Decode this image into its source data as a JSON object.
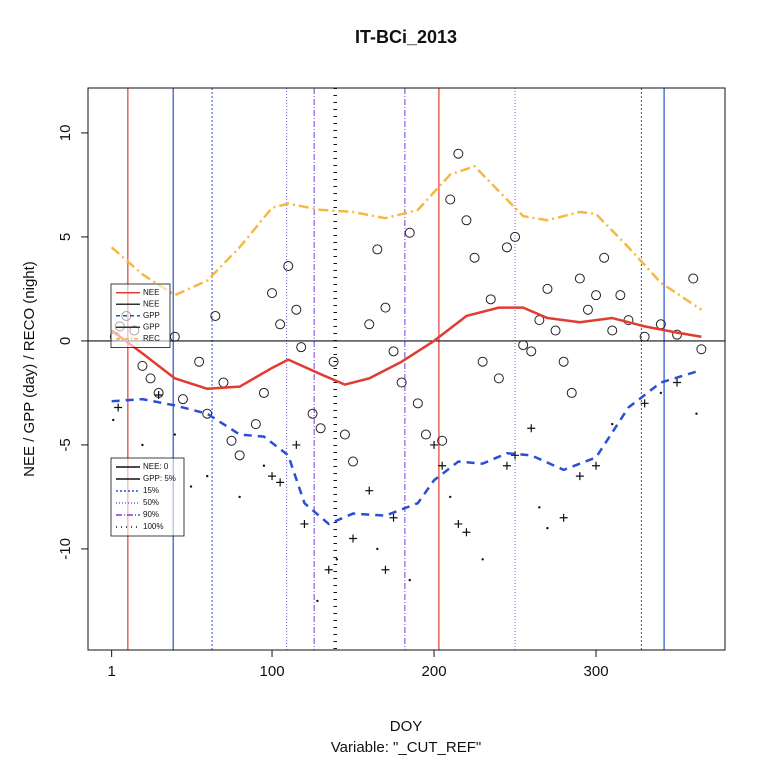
{
  "chart_data": {
    "type": "line",
    "title": "IT-BCi_2013",
    "x_label": "DOY",
    "y_label": "NEE / GPP (day) / RECO (night)",
    "subtitle": "Variable: \"_CUT_REF\"",
    "xlim": [
      -13.6,
      379.6
    ],
    "ylim": [
      -14.86,
      12.16
    ],
    "xticks": [
      1,
      100,
      200,
      300
    ],
    "yticks": [
      -10,
      -5,
      0,
      5,
      10
    ],
    "hline": 0,
    "series": [
      {
        "name": "REC",
        "color": "#f5b942",
        "dash": "10 4 2 4",
        "width": 2.5,
        "x": [
          1,
          20,
          40,
          60,
          80,
          100,
          110,
          130,
          150,
          170,
          190,
          210,
          225,
          240,
          255,
          270,
          290,
          300,
          320,
          340,
          365
        ],
        "values": [
          4.5,
          3.2,
          2.2,
          2.9,
          4.5,
          6.4,
          6.6,
          6.3,
          6.2,
          5.9,
          6.3,
          8.0,
          8.4,
          7.2,
          6.0,
          5.8,
          6.2,
          6.1,
          4.5,
          2.8,
          1.5
        ]
      },
      {
        "name": "NEE",
        "color": "#e03c31",
        "dash": "",
        "width": 2.5,
        "x": [
          1,
          20,
          40,
          60,
          80,
          100,
          110,
          130,
          145,
          160,
          180,
          200,
          220,
          240,
          255,
          270,
          290,
          310,
          330,
          350,
          365
        ],
        "values": [
          0.5,
          -0.6,
          -1.8,
          -2.3,
          -2.2,
          -1.3,
          -0.9,
          -1.6,
          -2.1,
          -1.8,
          -1.0,
          0,
          1.2,
          1.6,
          1.6,
          1.1,
          0.9,
          1.1,
          0.7,
          0.4,
          0.2
        ]
      },
      {
        "name": "GPP",
        "color": "#2a4fd6",
        "dash": "8 6",
        "width": 2.5,
        "x": [
          1,
          20,
          40,
          60,
          80,
          95,
          110,
          120,
          135,
          150,
          170,
          190,
          200,
          215,
          230,
          245,
          260,
          280,
          300,
          320,
          340,
          365
        ],
        "values": [
          -2.9,
          -2.8,
          -3.1,
          -3.5,
          -4.5,
          -4.6,
          -5.5,
          -7.8,
          -8.8,
          -8.3,
          -8.4,
          -7.8,
          -6.7,
          -5.8,
          -5.9,
          -5.4,
          -5.5,
          -6.2,
          -5.6,
          -3.2,
          -2.0,
          -1.4
        ]
      }
    ],
    "circles": {
      "x": [
        3,
        6,
        10,
        15,
        20,
        25,
        30,
        40,
        45,
        55,
        60,
        65,
        70,
        75,
        80,
        90,
        95,
        100,
        105,
        110,
        115,
        118,
        125,
        130,
        138,
        145,
        150,
        160,
        165,
        170,
        175,
        180,
        185,
        190,
        195,
        205,
        210,
        215,
        220,
        225,
        230,
        235,
        240,
        245,
        250,
        255,
        260,
        265,
        270,
        275,
        280,
        285,
        290,
        295,
        300,
        305,
        310,
        315,
        320,
        330,
        340,
        350,
        360,
        365
      ],
      "y": [
        0.2,
        0.7,
        1.2,
        0.5,
        -1.2,
        -1.8,
        -2.5,
        0.2,
        -2.8,
        -1.0,
        -3.5,
        1.2,
        -2.0,
        -4.8,
        -5.5,
        -4.0,
        -2.5,
        2.3,
        0.8,
        3.6,
        1.5,
        -0.3,
        -3.5,
        -4.2,
        -1.0,
        -4.5,
        -5.8,
        0.8,
        4.4,
        1.6,
        -0.5,
        -2.0,
        5.2,
        -3.0,
        -4.5,
        -4.8,
        6.8,
        9.0,
        5.8,
        4.0,
        -1.0,
        2.0,
        -1.8,
        4.5,
        5.0,
        -0.2,
        -0.5,
        1.0,
        2.5,
        0.5,
        -1.0,
        -2.5,
        3.0,
        1.5,
        2.2,
        4.0,
        0.5,
        2.2,
        1.0,
        0.2,
        0.8,
        0.3,
        3.0,
        -0.4
      ]
    },
    "plus": {
      "x": [
        5,
        30,
        100,
        105,
        115,
        120,
        135,
        150,
        160,
        170,
        175,
        200,
        205,
        215,
        220,
        245,
        250,
        260,
        280,
        290,
        300,
        330,
        350
      ],
      "y": [
        -3.2,
        -2.6,
        -6.5,
        -6.8,
        -5.0,
        -8.8,
        -11.0,
        -9.5,
        -7.2,
        -11.0,
        -8.5,
        -5.0,
        -6.0,
        -8.8,
        -9.2,
        -6.0,
        -5.5,
        -4.2,
        -8.5,
        -6.5,
        -6.0,
        -3.0,
        -2.0
      ]
    },
    "dots": {
      "x": [
        2,
        20,
        40,
        50,
        60,
        80,
        95,
        128,
        140,
        165,
        185,
        210,
        230,
        265,
        270,
        310,
        340,
        362
      ],
      "y": [
        -3.8,
        -5.0,
        -4.5,
        -7.0,
        -6.5,
        -7.5,
        -6.0,
        -12.5,
        -10.5,
        -10.0,
        -11.5,
        -7.5,
        -10.5,
        -8.0,
        -9.0,
        -4.0,
        -2.5,
        -3.5
      ]
    },
    "vlines": [
      {
        "x": 11,
        "color": "#e03c31",
        "dash": "",
        "width": 1.2
      },
      {
        "x": 203,
        "color": "#e03c31",
        "dash": "",
        "width": 1.2
      },
      {
        "x": 39,
        "color": "#2a4fd6",
        "dash": "",
        "width": 1.2
      },
      {
        "x": 342,
        "color": "#2a4fd6",
        "dash": "",
        "width": 1.2
      },
      {
        "x": 63,
        "color": "#2a4fd6",
        "dash": "2 2",
        "width": 1
      },
      {
        "x": 328,
        "color": "#2a4fd6",
        "dash": "2 2",
        "width": 1
      },
      {
        "x": 109,
        "color": "#7a5ad6",
        "dash": "1 2",
        "width": 1
      },
      {
        "x": 250,
        "color": "#7a5ad6",
        "dash": "1 2",
        "width": 1
      },
      {
        "x": 126,
        "color": "#7a3ad6",
        "dash": "6 2 1 2",
        "width": 1
      },
      {
        "x": 182,
        "color": "#7a3ad6",
        "dash": "6 2 1 2",
        "width": 1
      },
      {
        "x": 139,
        "color": "#111111",
        "dash": "1 6",
        "width": 3.5
      }
    ],
    "legend_curves": [
      {
        "name": "NEE",
        "color": "#e03c31",
        "dash": ""
      },
      {
        "name": "NEE",
        "color": "#333333",
        "dash": ""
      },
      {
        "name": "GPP",
        "color": "#2a4fd6",
        "dash": "4 3"
      },
      {
        "name": "GPP",
        "color": "#333333",
        "dash": ""
      },
      {
        "name": "REC",
        "color": "#f5b942",
        "dash": "4 2 1 2"
      }
    ],
    "legend_lines": [
      {
        "name": "NEE: 0",
        "color": "#111111",
        "dash": ""
      },
      {
        "name": "GPP: 5%",
        "color": "#111111",
        "dash": ""
      },
      {
        "name": "15%",
        "color": "#2a4fd6",
        "dash": "2 2"
      },
      {
        "name": "50%",
        "color": "#7a5ad6",
        "dash": "1 2"
      },
      {
        "name": "90%",
        "color": "#7a3ad6",
        "dash": "6 2 1 2"
      },
      {
        "name": "100%",
        "color": "#111111",
        "dash": "1 4"
      }
    ]
  }
}
